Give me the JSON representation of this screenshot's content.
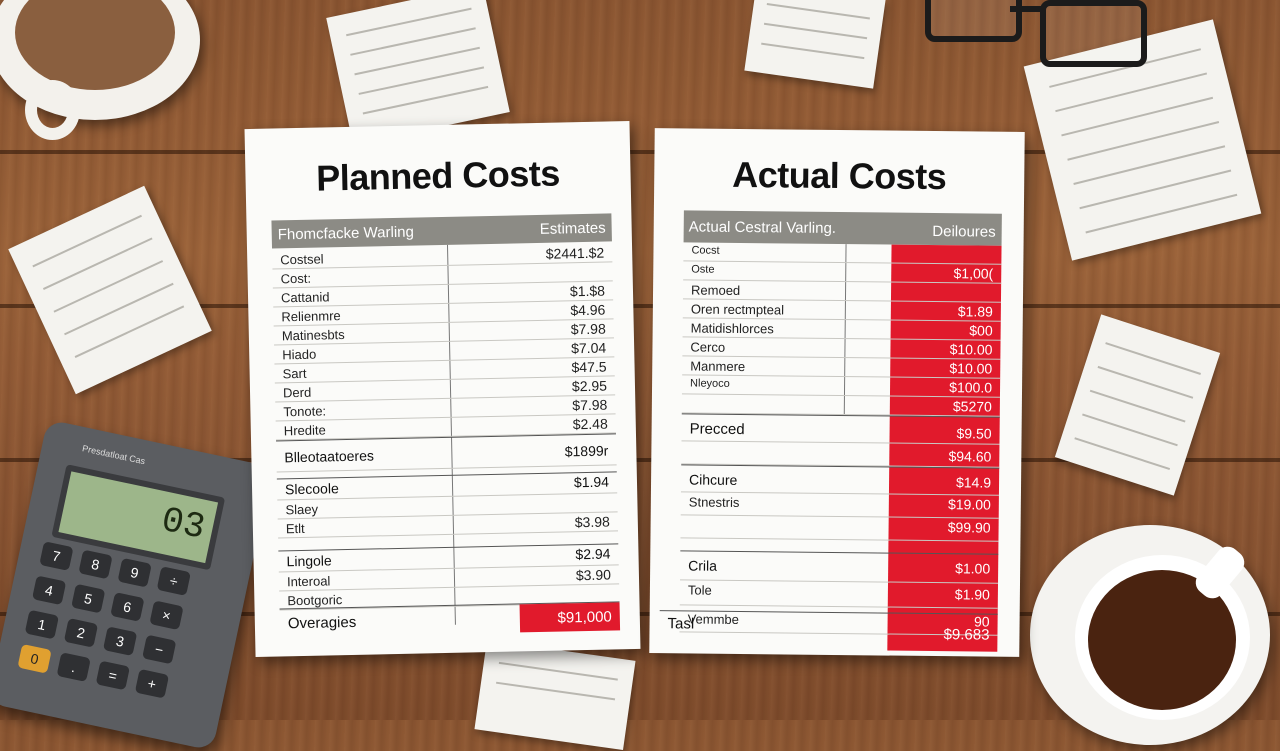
{
  "planned": {
    "title": "Planned Costs",
    "header_left": "Fhomcfacke Warling",
    "header_right": "Estimates",
    "rows": [
      {
        "label": "Costsel",
        "value": "$2441.$2"
      },
      {
        "label": "Cost:",
        "value": ""
      },
      {
        "label": "Cattanid",
        "value": "$1.$8"
      },
      {
        "label": "Relienmre",
        "value": "$4.96"
      },
      {
        "label": "Matinesbts",
        "value": "$7.98"
      },
      {
        "label": "Hiado",
        "value": "$7.04"
      },
      {
        "label": "Sart",
        "value": "$47.5"
      },
      {
        "label": "Derd",
        "value": "$2.95"
      },
      {
        "label": "Tonote:",
        "value": "$7.98"
      },
      {
        "label": "Hredite",
        "value": "$2.48"
      }
    ],
    "section1": {
      "label": "Blleotaatoeres",
      "value": "$1899r"
    },
    "rows2": [
      {
        "label": "Slecoole",
        "value": "$1.94"
      },
      {
        "label": "Slaey",
        "value": ""
      },
      {
        "label": "Etlt",
        "value": "$3.98"
      }
    ],
    "rows3": [
      {
        "label": "Lingole",
        "value": "$2.94"
      },
      {
        "label": "Interoal",
        "value": "$3.90"
      },
      {
        "label": "Bootgoric",
        "value": ""
      }
    ],
    "footer": {
      "label": "Overagies",
      "value": "$91,000"
    }
  },
  "actual": {
    "title": "Actual Costs",
    "header_left": "Actual Cestral Varling.",
    "header_right": "Deiloures",
    "rows": [
      {
        "label": "Cocst",
        "value": ""
      },
      {
        "label": "Oste",
        "value": "$1,00("
      },
      {
        "label": "Remoed",
        "value": ""
      },
      {
        "label": "Oren rectmpteal",
        "value": "$1.89"
      },
      {
        "label": "Matidishlorces",
        "value": "$00"
      },
      {
        "label": "Cerco",
        "value": "$10.00"
      },
      {
        "label": "Manmere",
        "value": "$10.00"
      },
      {
        "label": "Nleyoco",
        "value": "$100.0"
      },
      {
        "label": "",
        "value": "$5270"
      }
    ],
    "section1": {
      "label": "Precced",
      "value": "$9.50"
    },
    "extra1": "$94.60",
    "section2": {
      "label": "Cihcure",
      "value": "$14.9"
    },
    "rows2": [
      {
        "label": "Stnestris",
        "value": "$19.00"
      },
      {
        "label": "",
        "value": "$99.90"
      }
    ],
    "section3": {
      "label": "Crila",
      "value": "$1.00"
    },
    "rows3": [
      {
        "label": "Tole",
        "value": "$1.90"
      },
      {
        "label": "Vemmbe",
        "value": "90"
      }
    ],
    "footer": {
      "label": "Tasl",
      "value": "$9.683"
    }
  },
  "calculator": {
    "brand": "Presdatloat Cas",
    "display": "03"
  },
  "colors": {
    "accent_red": "#e11a2c",
    "header_gray": "#8c8b85",
    "wood": "#8d5633"
  }
}
